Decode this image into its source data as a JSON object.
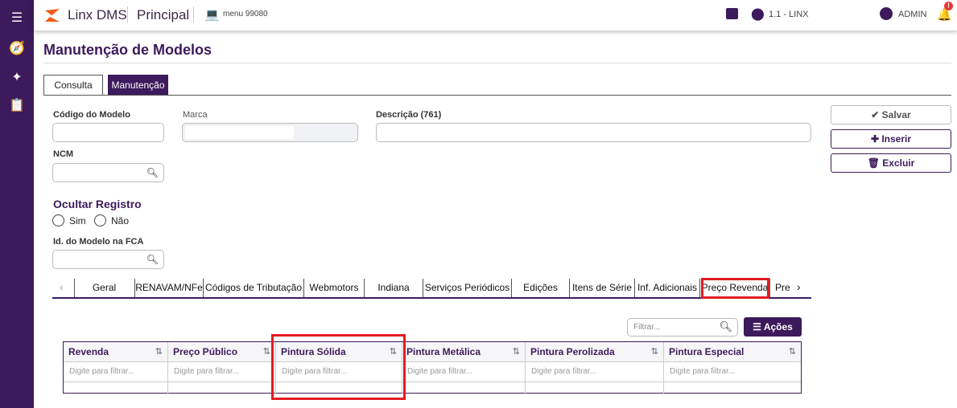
{
  "header": {
    "brand": "Linx DMS",
    "module": "Principal",
    "menu": "menu 99080",
    "location": "1.1 - LINX",
    "user": "ADMIN"
  },
  "page": {
    "title": "Manutenção de Modelos",
    "tabs": [
      "Consulta",
      "Manutenção"
    ]
  },
  "form": {
    "codigo_label": "Código do Modelo",
    "marca_label": "Marca",
    "descricao_label": "Descrição (761)",
    "ncm_label": "NCM",
    "ocultar_label": "Ocultar Registro",
    "sim": "Sim",
    "nao": "Não",
    "fca_label": "Id. do Modelo na FCA"
  },
  "actions": {
    "salvar": "Salvar",
    "inserir": "Inserir",
    "excluir": "Excluir"
  },
  "subtabs": [
    "Geral",
    "RENAVAM/NFe",
    "Códigos de Tributação",
    "Webmotors",
    "Indiana",
    "Serviços Periódicos",
    "Edições",
    "Itens de Série",
    "Inf. Adicionais",
    "Preço Revenda",
    "Pre"
  ],
  "grid": {
    "filter_placeholder": "Filtrar...",
    "acoes": "Ações",
    "columns": [
      "Revenda",
      "Preço Público",
      "Pintura Sólida",
      "Pintura Metálica",
      "Pintura Perolizada",
      "Pintura Especial"
    ],
    "col_filter": "Digite para filtrar..."
  },
  "colors": {
    "primary": "#3d1a5b",
    "highlight": "#e31b23"
  }
}
